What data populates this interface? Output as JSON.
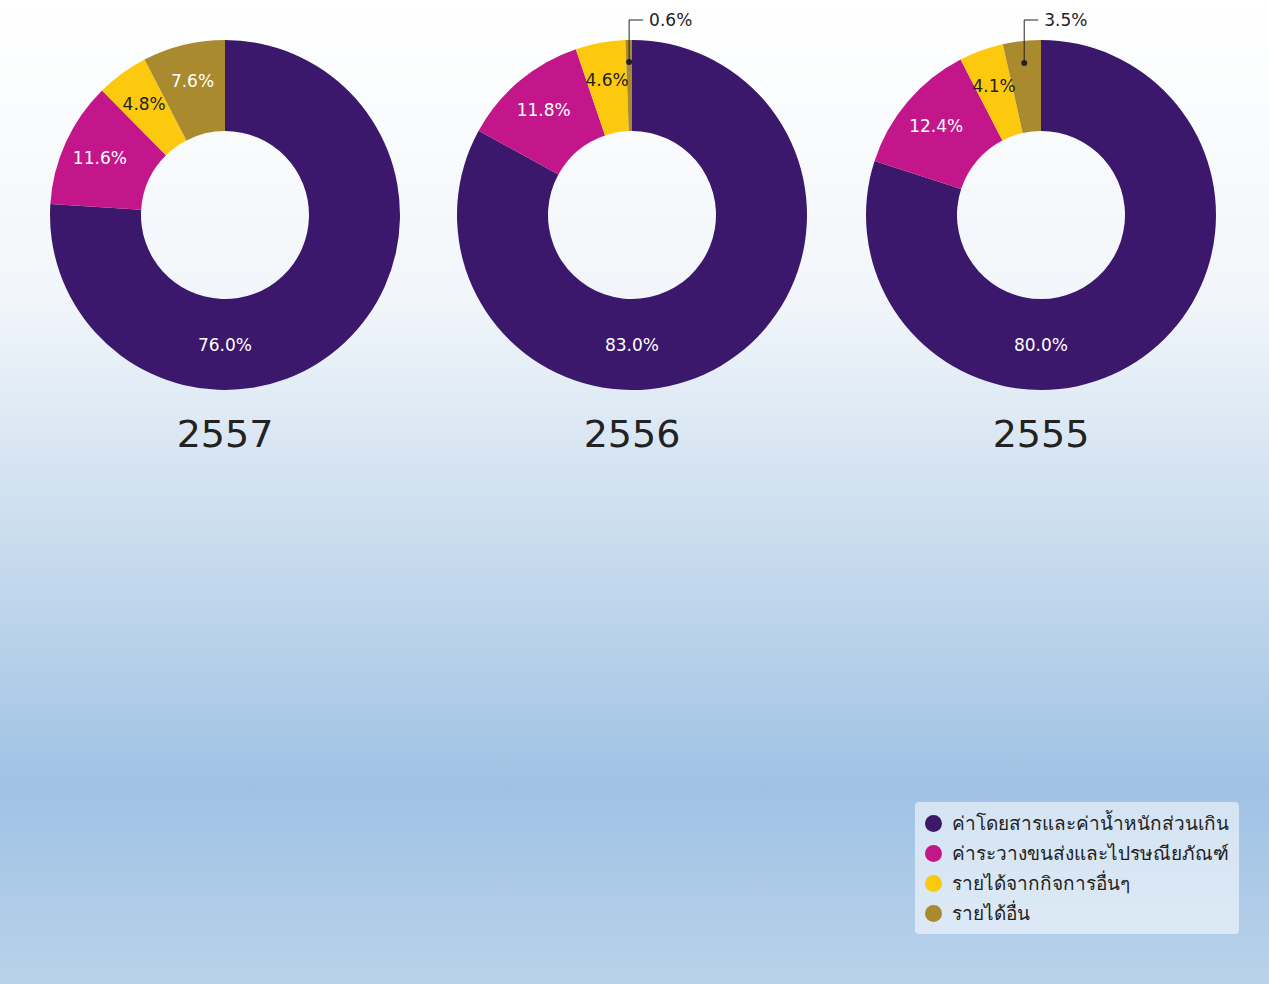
{
  "chart_data": [
    {
      "type": "pie",
      "title": "2557",
      "categories": [
        "ค่าโดยสารและค่าน้ำหนักส่วนเกิน",
        "ค่าระวางขนส่งและไปรษณียภัณฑ์",
        "รายได้จากกิจการอื่นๆ",
        "รายได้อื่น"
      ],
      "values": [
        76.0,
        11.6,
        4.8,
        7.6
      ],
      "value_labels": [
        "76.0%",
        "11.6%",
        "4.8%",
        "7.6%"
      ],
      "colors": [
        "#3b186b",
        "#c4168b",
        "#fcc90f",
        "#a98a2e"
      ],
      "data_labels": true,
      "legend": "lower right"
    },
    {
      "type": "pie",
      "title": "2556",
      "categories": [
        "ค่าโดยสารและค่าน้ำหนักส่วนเกิน",
        "ค่าระวางขนส่งและไปรษณียภัณฑ์",
        "รายได้จากกิจการอื่นๆ",
        "รายได้อื่น"
      ],
      "values": [
        83.0,
        11.8,
        4.6,
        0.6
      ],
      "value_labels": [
        "83.0%",
        "11.8%",
        "4.6%",
        "0.6%"
      ],
      "colors": [
        "#3b186b",
        "#c4168b",
        "#fcc90f",
        "#a98a2e"
      ],
      "data_labels": true,
      "legend": "lower right"
    },
    {
      "type": "pie",
      "title": "2555",
      "categories": [
        "ค่าโดยสารและค่าน้ำหนักส่วนเกิน",
        "ค่าระวางขนส่งและไปรษณียภัณฑ์",
        "รายได้จากกิจการอื่นๆ",
        "รายได้อื่น"
      ],
      "values": [
        80.0,
        12.4,
        4.1,
        3.5
      ],
      "value_labels": [
        "80.0%",
        "12.4%",
        "4.1%",
        "3.5%"
      ],
      "colors": [
        "#3b186b",
        "#c4168b",
        "#fcc90f",
        "#a98a2e"
      ],
      "data_labels": true,
      "legend": "lower right"
    }
  ]
}
